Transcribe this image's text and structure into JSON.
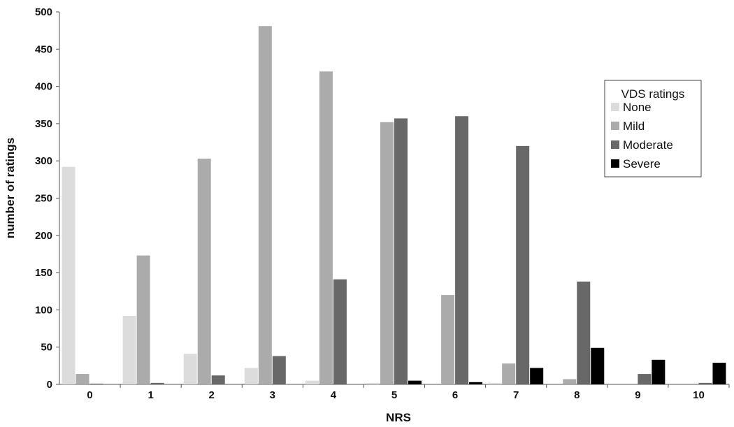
{
  "chart_data": {
    "type": "bar",
    "title": "",
    "xlabel": "NRS",
    "ylabel": "number of ratings",
    "categories": [
      "0",
      "1",
      "2",
      "3",
      "4",
      "5",
      "6",
      "7",
      "8",
      "9",
      "10"
    ],
    "ylim": [
      0,
      500
    ],
    "yticks": [
      0,
      50,
      100,
      150,
      200,
      250,
      300,
      350,
      400,
      450,
      500
    ],
    "grid": false,
    "legend": {
      "title": "VDS ratings",
      "placement": "right"
    },
    "series": [
      {
        "name": "None",
        "color": "#dcdcdc",
        "values": [
          292,
          92,
          41,
          22,
          5,
          2,
          0,
          2,
          0,
          0,
          0
        ]
      },
      {
        "name": "Mild",
        "color": "#ababab",
        "values": [
          14,
          173,
          303,
          481,
          420,
          352,
          120,
          28,
          7,
          0,
          0
        ]
      },
      {
        "name": "Moderate",
        "color": "#686868",
        "values": [
          1,
          2,
          12,
          38,
          141,
          357,
          360,
          320,
          138,
          14,
          2
        ]
      },
      {
        "name": "Severe",
        "color": "#000000",
        "values": [
          0,
          0,
          0,
          0,
          0,
          5,
          3,
          22,
          49,
          33,
          29
        ]
      }
    ]
  }
}
